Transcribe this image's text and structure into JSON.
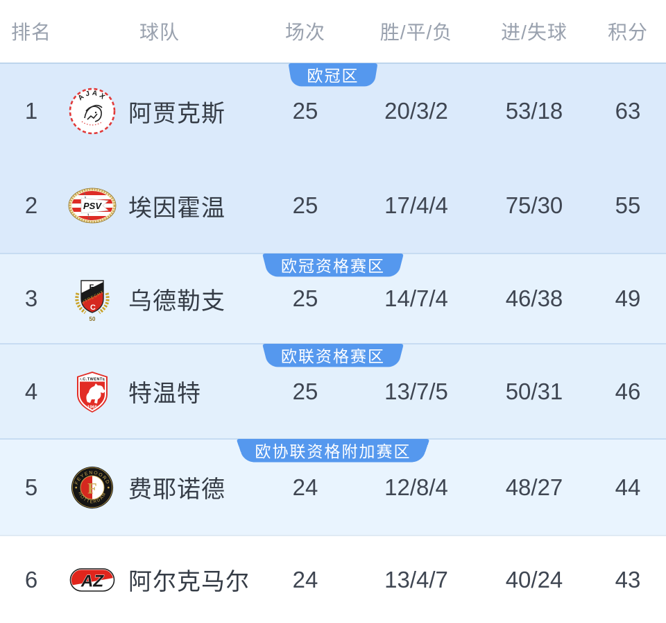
{
  "colors": {
    "badge_blue": "#5598ee",
    "divider_blue": "#c7dcf2",
    "section_backgrounds": [
      "#dbeafb",
      "#e6f2fd",
      "#e3f0fc",
      "#e9f4fe",
      "#ffffff"
    ],
    "header_text": "#99a1ae",
    "row_text": "#3f4652"
  },
  "table": {
    "headers": {
      "rank": "排名",
      "team": "球队",
      "matches": "场次",
      "wdl": "胜/平/负",
      "goals": "进/失球",
      "points": "积分"
    },
    "sections": [
      {
        "zone_label": "欧冠区",
        "rows": [
          {
            "rank": "1",
            "logo": "ajax-logo",
            "team": "阿贾克斯",
            "matches": "25",
            "wdl": "20/3/2",
            "goals": "53/18",
            "points": "63"
          },
          {
            "rank": "2",
            "logo": "psv-logo",
            "team": "埃因霍温",
            "matches": "25",
            "wdl": "17/4/4",
            "goals": "75/30",
            "points": "55"
          }
        ]
      },
      {
        "zone_label": "欧冠资格赛区",
        "rows": [
          {
            "rank": "3",
            "logo": "utrecht-logo",
            "team": "乌德勒支",
            "matches": "25",
            "wdl": "14/7/4",
            "goals": "46/38",
            "points": "49"
          }
        ]
      },
      {
        "zone_label": "欧联资格赛区",
        "rows": [
          {
            "rank": "4",
            "logo": "twente-logo",
            "team": "特温特",
            "matches": "25",
            "wdl": "13/7/5",
            "goals": "50/31",
            "points": "46"
          }
        ]
      },
      {
        "zone_label": "欧协联资格附加赛区",
        "rows": [
          {
            "rank": "5",
            "logo": "feyenoord-logo",
            "team": "费耶诺德",
            "matches": "24",
            "wdl": "12/8/4",
            "goals": "48/27",
            "points": "44"
          }
        ]
      },
      {
        "zone_label": null,
        "rows": [
          {
            "rank": "6",
            "logo": "az-logo",
            "team": "阿尔克马尔",
            "matches": "24",
            "wdl": "13/4/7",
            "goals": "40/24",
            "points": "43"
          }
        ]
      }
    ]
  }
}
